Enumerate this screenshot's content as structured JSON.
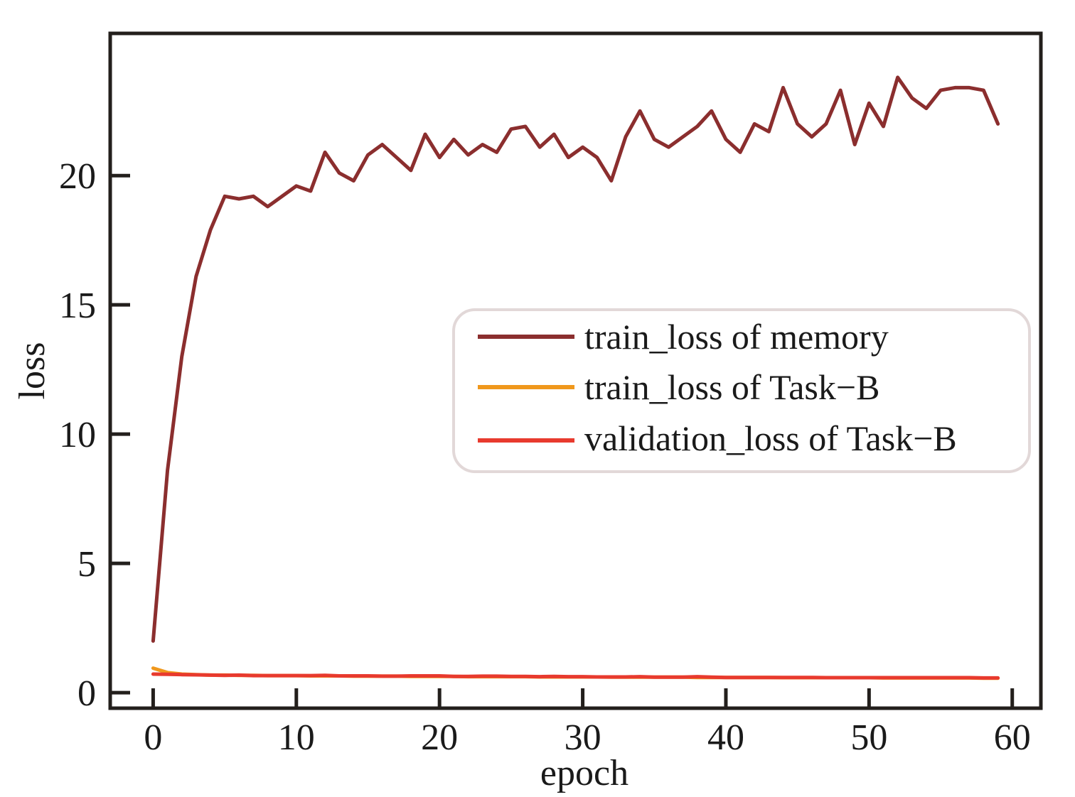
{
  "chart_data": {
    "type": "line",
    "title": "",
    "xlabel": "epoch",
    "ylabel": "loss",
    "xlim": [
      -3,
      62
    ],
    "ylim": [
      -0.6,
      25.5
    ],
    "xticks": [
      0,
      10,
      20,
      30,
      40,
      50,
      60
    ],
    "xtick_labels": [
      "0",
      "10",
      "20",
      "30",
      "40",
      "50",
      "60"
    ],
    "yticks": [
      0,
      5,
      10,
      15,
      20
    ],
    "ytick_labels": [
      "0",
      "5",
      "10",
      "15",
      "20"
    ],
    "grid": false,
    "legend_position": "center-right",
    "x": [
      0,
      1,
      2,
      3,
      4,
      5,
      6,
      7,
      8,
      9,
      10,
      11,
      12,
      13,
      14,
      15,
      16,
      17,
      18,
      19,
      20,
      21,
      22,
      23,
      24,
      25,
      26,
      27,
      28,
      29,
      30,
      31,
      32,
      33,
      34,
      35,
      36,
      37,
      38,
      39,
      40,
      41,
      42,
      43,
      44,
      45,
      46,
      47,
      48,
      49,
      50,
      51,
      52,
      53,
      54,
      55,
      56,
      57,
      58,
      59
    ],
    "series": [
      {
        "name": "train_loss of memory",
        "color": "#8b2e2e",
        "values": [
          2.0,
          8.6,
          13.0,
          16.1,
          17.9,
          19.2,
          19.1,
          19.2,
          18.8,
          19.2,
          19.6,
          19.4,
          20.9,
          20.1,
          19.8,
          20.8,
          21.2,
          20.7,
          20.2,
          21.6,
          20.7,
          21.4,
          20.8,
          21.2,
          20.9,
          21.8,
          21.9,
          21.1,
          21.6,
          20.7,
          21.1,
          20.7,
          19.8,
          21.5,
          22.5,
          21.4,
          21.1,
          21.5,
          21.9,
          22.5,
          21.4,
          20.9,
          22.0,
          21.7,
          23.4,
          22.0,
          21.5,
          22.0,
          23.3,
          21.2,
          22.8,
          21.9,
          23.8,
          23.0,
          22.6,
          23.3,
          23.4,
          23.4,
          23.3,
          22.0
        ]
      },
      {
        "name": "train_loss of Task−B",
        "color": "#f0981c",
        "values": [
          0.95,
          0.78,
          0.72,
          0.7,
          0.68,
          0.68,
          0.67,
          0.67,
          0.66,
          0.66,
          0.66,
          0.65,
          0.65,
          0.65,
          0.64,
          0.64,
          0.64,
          0.64,
          0.63,
          0.63,
          0.63,
          0.63,
          0.62,
          0.62,
          0.62,
          0.62,
          0.62,
          0.61,
          0.61,
          0.61,
          0.61,
          0.61,
          0.6,
          0.6,
          0.6,
          0.6,
          0.6,
          0.6,
          0.59,
          0.59,
          0.59,
          0.59,
          0.59,
          0.59,
          0.58,
          0.58,
          0.58,
          0.58,
          0.58,
          0.58,
          0.58,
          0.57,
          0.57,
          0.57,
          0.57,
          0.57,
          0.57,
          0.57,
          0.56,
          0.56
        ]
      },
      {
        "name": "validation_loss of Task−B",
        "color": "#e83a2e",
        "values": [
          0.72,
          0.71,
          0.7,
          0.69,
          0.68,
          0.67,
          0.68,
          0.66,
          0.66,
          0.66,
          0.66,
          0.66,
          0.67,
          0.65,
          0.65,
          0.65,
          0.64,
          0.64,
          0.65,
          0.65,
          0.65,
          0.63,
          0.63,
          0.64,
          0.64,
          0.63,
          0.63,
          0.62,
          0.63,
          0.62,
          0.62,
          0.61,
          0.61,
          0.61,
          0.62,
          0.6,
          0.6,
          0.6,
          0.62,
          0.6,
          0.59,
          0.59,
          0.59,
          0.59,
          0.59,
          0.59,
          0.59,
          0.58,
          0.58,
          0.58,
          0.58,
          0.58,
          0.58,
          0.58,
          0.58,
          0.58,
          0.58,
          0.58,
          0.57,
          0.57
        ]
      }
    ]
  },
  "colors": {
    "axis": "#231f1c",
    "legend_border": "#e2d8d8"
  }
}
